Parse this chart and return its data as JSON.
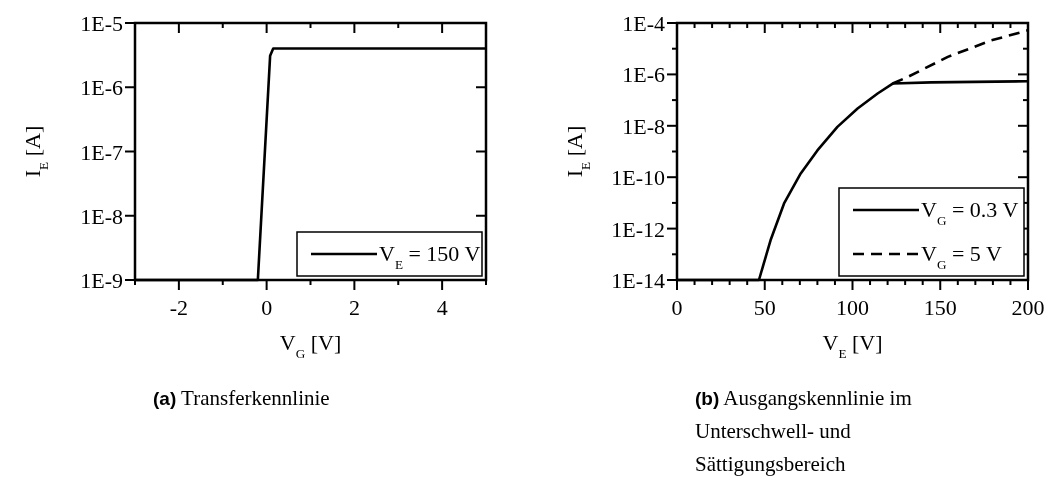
{
  "chart_data": [
    {
      "type": "line",
      "title": "(a) Transferkennlinie",
      "xlabel": "V$_{G}$ [V]",
      "ylabel": "I$_{E}$ [A]",
      "log": true,
      "legend": "bottom right",
      "xlim": [
        -3,
        5
      ],
      "xticks": [
        {
          "value": -3,
          "label": null
        },
        {
          "value": -2,
          "label": "-2"
        },
        {
          "value": -1,
          "label": null
        },
        {
          "value": 0,
          "label": "0"
        },
        {
          "value": 1,
          "label": null
        },
        {
          "value": 2,
          "label": "2"
        },
        {
          "value": 3,
          "label": null
        },
        {
          "value": 4,
          "label": "4"
        },
        {
          "value": 5,
          "label": null
        }
      ],
      "ylim": [
        1e-09,
        1e-05
      ],
      "yticks": [
        {
          "value": 1e-09,
          "label": "1E-9"
        },
        {
          "value": 1e-08,
          "label": "1E-8"
        },
        {
          "value": 1e-07,
          "label": "1E-7"
        },
        {
          "value": 1e-06,
          "label": "1E-6"
        },
        {
          "value": 1e-05,
          "label": "1E-5"
        }
      ],
      "series": [
        {
          "name": "V$_{E}$ = 150 V",
          "color": "#000000",
          "line_style": "solid",
          "x": [
            -3,
            -0.2,
            0.08,
            0.15,
            5
          ],
          "values": [
            1e-09,
            1e-09,
            3.1e-06,
            4e-06,
            4e-06
          ]
        }
      ]
    },
    {
      "type": "line",
      "title": "(b) Ausgangskennlinie im Unterschwell- und Sättigungsbereich",
      "xlabel": "V$_{E}$ [V]",
      "ylabel": "I$_{E}$ [A]",
      "log": true,
      "legend": "bottom right",
      "xlim": [
        0,
        200
      ],
      "xticks": [
        0,
        {
          "value": 10,
          "label": null
        },
        {
          "value": 20,
          "label": null
        },
        {
          "value": 30,
          "label": null
        },
        {
          "value": 40,
          "label": null
        },
        50,
        {
          "value": 60,
          "label": null
        },
        {
          "value": 70,
          "label": null
        },
        {
          "value": 80,
          "label": null
        },
        {
          "value": 90,
          "label": null
        },
        100,
        {
          "value": 110,
          "label": null
        },
        {
          "value": 120,
          "label": null
        },
        {
          "value": 130,
          "label": null
        },
        {
          "value": 140,
          "label": null
        },
        150,
        {
          "value": 160,
          "label": null
        },
        {
          "value": 170,
          "label": null
        },
        {
          "value": 180,
          "label": null
        },
        {
          "value": 190,
          "label": null
        },
        200
      ],
      "ylim": [
        1e-14,
        0.0001
      ],
      "yticks": [
        {
          "value": 1e-14,
          "label": "1E-14"
        },
        {
          "value": 1e-13,
          "label": null
        },
        {
          "value": 1e-12,
          "label": "1E-12"
        },
        {
          "value": 1e-11,
          "label": null
        },
        {
          "value": 1e-10,
          "label": "1E-10"
        },
        {
          "value": 1e-09,
          "label": null
        },
        {
          "value": 1e-08,
          "label": "1E-8"
        },
        {
          "value": 1e-07,
          "label": null
        },
        {
          "value": 1e-06,
          "label": "1E-6"
        },
        {
          "value": 1e-05,
          "label": null
        },
        {
          "value": 0.0001,
          "label": "1E-4"
        }
      ],
      "series": [
        {
          "name": "V$_{G}$ = 0.3 V",
          "color": "#000000",
          "line_style": "solid",
          "x": [
            0,
            46.7,
            53.3,
            61,
            70.5,
            80,
            91.4,
            102.9,
            114.3,
            122.9,
            144.8,
            200
          ],
          "values": [
            1e-14,
            1e-14,
            3.5e-13,
            9.5e-12,
            1.4e-10,
            1.1e-09,
            9.1e-09,
            4.7e-08,
            1.8e-07,
            4.4e-07,
            4.9e-07,
            5.4e-07
          ]
        },
        {
          "name": "V$_{G}$ = 5 V",
          "color": "#000000",
          "line_style": "dashed",
          "x": [
            122.9,
            131.4,
            154.3,
            179,
            200
          ],
          "values": [
            4.4e-07,
            7.9e-07,
            4.8e-06,
            2.1e-05,
            5.2e-05
          ]
        }
      ]
    }
  ]
}
